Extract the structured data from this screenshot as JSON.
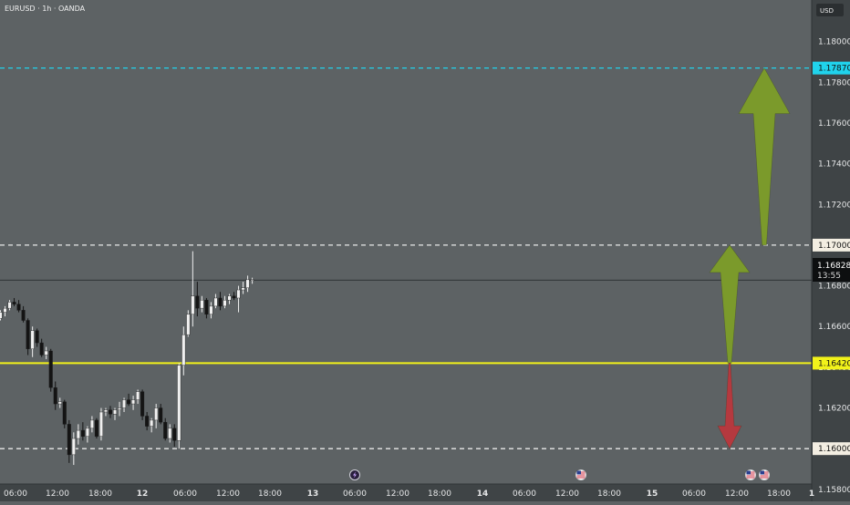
{
  "header": {
    "symbol": "EURUSD · 1h · OANDA"
  },
  "price_axis": {
    "currency_badge": "USD"
  },
  "current_price": {
    "value": "1.16828",
    "countdown": "13:55"
  },
  "colors": {
    "background": "#5d6264",
    "axis_background": "#3f4446",
    "candle_up": "#f0f0f0",
    "candle_down": "#141414",
    "dashed_level": "#e9e9e9",
    "target_level": "#20d3ec",
    "support_line": "#f2f21a",
    "arrow_up": "#7b9a2b",
    "arrow_down": "#b5393f"
  },
  "event_icons": [
    {
      "name": "event-icon-lightning",
      "time": "13 06:00"
    },
    {
      "name": "event-icon-us-flag",
      "time": "14 12:00"
    },
    {
      "name": "event-icon-us-flag",
      "time": "15 12:00"
    },
    {
      "name": "event-icon-us-flag",
      "time": "15 14:00"
    }
  ],
  "chart_data": {
    "type": "candlestick",
    "title": "EURUSD · 1h · OANDA",
    "ylim": [
      1.1575,
      1.1807
    ],
    "y_ticks": [
      "1.18000",
      "1.17800",
      "1.17600",
      "1.17400",
      "1.17200",
      "1.17000",
      "1.16800",
      "1.16600",
      "1.16400",
      "1.16200",
      "1.16000",
      "1.15800"
    ],
    "x_ticks": [
      "06:00",
      "12:00",
      "18:00",
      "12",
      "06:00",
      "12:00",
      "18:00",
      "13",
      "06:00",
      "12:00",
      "18:00",
      "14",
      "06:00",
      "12:00",
      "18:00",
      "15",
      "06:00",
      "12:00",
      "18:00",
      "1"
    ],
    "grid": false,
    "levels": [
      {
        "price": 1.1787,
        "label": "1.17870",
        "style": "dashed",
        "color": "#20d3ec"
      },
      {
        "price": 1.17,
        "label": "1.17000",
        "style": "dashed",
        "color": "#e9e9e9"
      },
      {
        "price": 1.1642,
        "label": "1.16420",
        "style": "solid",
        "color": "#f2f21a"
      },
      {
        "price": 1.16,
        "label": "1.16000",
        "style": "dashed",
        "color": "#e9e9e9"
      }
    ],
    "arrows": [
      {
        "direction": "up",
        "from": 1.1642,
        "to": 1.17,
        "color": "#7b9a2b"
      },
      {
        "direction": "up",
        "from": 1.17,
        "to": 1.1787,
        "color": "#7b9a2b"
      },
      {
        "direction": "down",
        "from": 1.1642,
        "to": 1.16,
        "color": "#b5393f"
      }
    ],
    "candles": [
      [
        1.1664,
        1.1668,
        1.1663,
        1.1667
      ],
      [
        1.1667,
        1.167,
        1.1665,
        1.1669
      ],
      [
        1.1669,
        1.1673,
        1.1668,
        1.1672
      ],
      [
        1.1672,
        1.1674,
        1.167,
        1.1671
      ],
      [
        1.1671,
        1.1673,
        1.1667,
        1.1668
      ],
      [
        1.1668,
        1.167,
        1.1662,
        1.1663
      ],
      [
        1.1663,
        1.1664,
        1.1646,
        1.1649
      ],
      [
        1.1649,
        1.166,
        1.1645,
        1.1658
      ],
      [
        1.1658,
        1.1659,
        1.165,
        1.1652
      ],
      [
        1.1652,
        1.1654,
        1.1645,
        1.1646
      ],
      [
        1.1646,
        1.165,
        1.1644,
        1.1648
      ],
      [
        1.1648,
        1.1649,
        1.1628,
        1.163
      ],
      [
        1.163,
        1.1633,
        1.1619,
        1.1622
      ],
      [
        1.1622,
        1.1625,
        1.162,
        1.1623
      ],
      [
        1.1623,
        1.1624,
        1.161,
        1.1612
      ],
      [
        1.1612,
        1.1614,
        1.1593,
        1.1597
      ],
      [
        1.1597,
        1.1608,
        1.1592,
        1.1605
      ],
      [
        1.1605,
        1.1612,
        1.1602,
        1.1609
      ],
      [
        1.1609,
        1.1613,
        1.1604,
        1.1606
      ],
      [
        1.1606,
        1.1611,
        1.1603,
        1.161
      ],
      [
        1.161,
        1.1616,
        1.1608,
        1.1614
      ],
      [
        1.1614,
        1.1615,
        1.1605,
        1.1606
      ],
      [
        1.1606,
        1.162,
        1.1604,
        1.1618
      ],
      [
        1.1618,
        1.162,
        1.1616,
        1.1619
      ],
      [
        1.1619,
        1.1621,
        1.1615,
        1.1617
      ],
      [
        1.1617,
        1.162,
        1.1614,
        1.1619
      ],
      [
        1.1619,
        1.1623,
        1.1616,
        1.162
      ],
      [
        1.162,
        1.1625,
        1.1618,
        1.1624
      ],
      [
        1.1624,
        1.1627,
        1.1621,
        1.1622
      ],
      [
        1.1622,
        1.1626,
        1.1619,
        1.1624
      ],
      [
        1.1624,
        1.1629,
        1.1622,
        1.1628
      ],
      [
        1.1628,
        1.1629,
        1.1614,
        1.1616
      ],
      [
        1.1616,
        1.1618,
        1.1609,
        1.1611
      ],
      [
        1.1611,
        1.1615,
        1.1608,
        1.1614
      ],
      [
        1.1614,
        1.1622,
        1.161,
        1.162
      ],
      [
        1.162,
        1.1622,
        1.1612,
        1.1613
      ],
      [
        1.1613,
        1.1615,
        1.1604,
        1.1605
      ],
      [
        1.1605,
        1.1612,
        1.1603,
        1.161
      ],
      [
        1.161,
        1.1612,
        1.1601,
        1.1604
      ],
      [
        1.1604,
        1.1642,
        1.16,
        1.1641
      ],
      [
        1.1641,
        1.166,
        1.1636,
        1.1656
      ],
      [
        1.1656,
        1.1668,
        1.1655,
        1.1666
      ],
      [
        1.1666,
        1.1697,
        1.166,
        1.1675
      ],
      [
        1.1675,
        1.1682,
        1.1665,
        1.1669
      ],
      [
        1.1669,
        1.1675,
        1.1667,
        1.1673
      ],
      [
        1.1673,
        1.1674,
        1.1664,
        1.1666
      ],
      [
        1.1666,
        1.1672,
        1.1664,
        1.167
      ],
      [
        1.167,
        1.1676,
        1.1669,
        1.1674
      ],
      [
        1.1674,
        1.1677,
        1.1668,
        1.167
      ],
      [
        1.167,
        1.1675,
        1.1669,
        1.1673
      ],
      [
        1.1673,
        1.1676,
        1.1671,
        1.1675
      ],
      [
        1.1675,
        1.1677,
        1.1673,
        1.1674
      ],
      [
        1.1674,
        1.168,
        1.1667,
        1.1678
      ],
      [
        1.1678,
        1.1682,
        1.1676,
        1.1679
      ],
      [
        1.1679,
        1.1685,
        1.1677,
        1.1683
      ],
      [
        1.1683,
        1.1684,
        1.1681,
        1.1683
      ]
    ]
  }
}
